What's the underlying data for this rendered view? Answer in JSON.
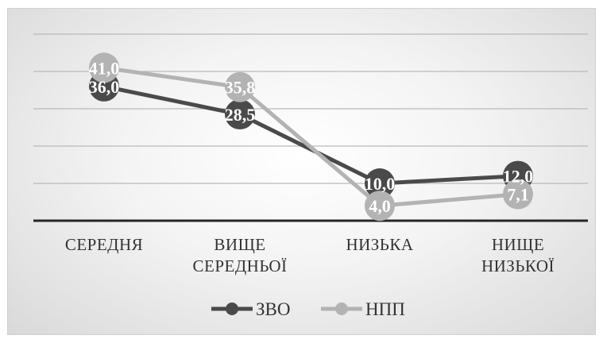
{
  "chart_data": {
    "type": "line",
    "title": "",
    "xlabel": "",
    "ylabel": "",
    "ylim": [
      0,
      50
    ],
    "grid": true,
    "legend_position": "bottom",
    "categories": [
      [
        "СЕРЕДНЯ"
      ],
      [
        "ВИЩЕ",
        "СЕРЕДНЬОЇ"
      ],
      [
        "НИЗЬКА"
      ],
      [
        "НИЩЕ",
        "НИЗЬКОЇ"
      ]
    ],
    "series": [
      {
        "name": "ЗВО",
        "values": [
          36.0,
          28.5,
          10.0,
          12.0
        ],
        "labels": [
          "36,0",
          "28,5",
          "10,0",
          "12,0"
        ],
        "color": "#4a4a4a"
      },
      {
        "name": "НПП",
        "values": [
          41.0,
          35.8,
          4.0,
          7.1
        ],
        "labels": [
          "41,0",
          "35,8",
          "4,0",
          "7,1"
        ],
        "color": "#b3b3b3"
      }
    ]
  }
}
